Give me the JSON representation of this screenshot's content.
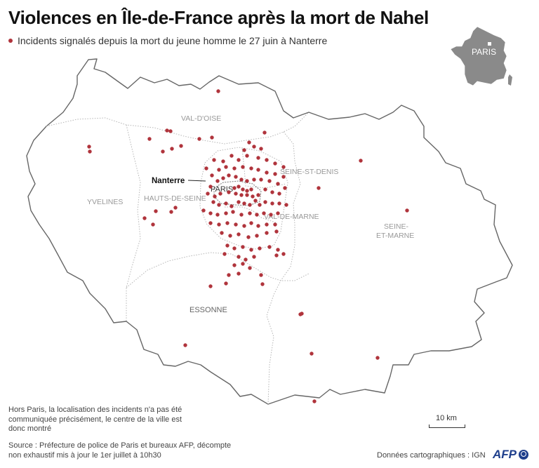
{
  "title": "Violences en Île-de-France après la mort de Nahel",
  "legend": {
    "label": "Incidents signalés depuis la mort du jeune homme le 27 juin à Nanterre",
    "color": "#b0343c"
  },
  "inset": {
    "label": "PARIS"
  },
  "departments": {
    "val_doise": "VAL-D'OISE",
    "seine_st_denis": "SEINE-ST-DENIS",
    "yvelines": "YVELINES",
    "hauts_de_seine": "HAUTS-DE-SEINE",
    "paris": "PARIS",
    "val_de_marne": "VAL-DE-MARNE",
    "seine_et_marne_1": "SEINE-",
    "seine_et_marne_2": "ET-MARNE",
    "essonne": "ESSONNE"
  },
  "callout": {
    "label": "Nanterre"
  },
  "note": "Hors Paris, la localisation des incidents n'a pas été communiquée précisément, le centre de la ville est donc montré",
  "source": "Source : Préfecture de police de Paris et bureaux AFP, décompte non exhaustif mis à jour le 1er juillet à 10h30",
  "credit": "Données cartographiques : IGN",
  "agency": "AFP",
  "scale": {
    "label": "10 km"
  },
  "colors": {
    "incident": "#b0343c",
    "region_border": "#666666",
    "inset_fill": "#8a8a8a",
    "dept_border": "#b5b5b5"
  }
}
